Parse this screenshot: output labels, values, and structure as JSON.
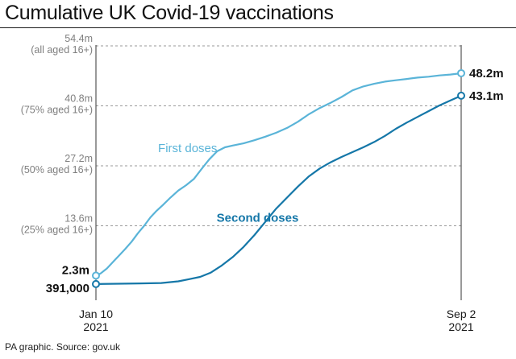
{
  "chart_data": {
    "type": "line",
    "title": "Cumulative UK Covid-19 vaccinations",
    "source": "PA graphic. Source: gov.uk",
    "x_dates": [
      "2021-01-10",
      "2021-09-02"
    ],
    "x_ticks": [
      {
        "date": "2021-01-10",
        "line1": "Jan 10",
        "line2": "2021"
      },
      {
        "date": "2021-09-02",
        "line1": "Sep 2",
        "line2": "2021"
      }
    ],
    "y_range": [
      0,
      54.4
    ],
    "y_ticks": [
      {
        "value": 13.6,
        "line1": "13.6m",
        "line2": "(25% aged 16+)"
      },
      {
        "value": 27.2,
        "line1": "27.2m",
        "line2": "(50% aged 16+)"
      },
      {
        "value": 40.8,
        "line1": "40.8m",
        "line2": "(75% aged 16+)"
      },
      {
        "value": 54.4,
        "line1": "54.4m",
        "line2": "(all aged 16+)"
      }
    ],
    "grid": "horizontal dashed",
    "series": [
      {
        "name": "First doses",
        "color": "#5ab4d8",
        "start_label": "2.3m",
        "end_label": "48.2m",
        "points": [
          [
            "2021-01-10",
            2.3
          ],
          [
            "2021-01-13",
            2.8
          ],
          [
            "2021-01-17",
            3.9
          ],
          [
            "2021-01-21",
            5.4
          ],
          [
            "2021-01-25",
            6.9
          ],
          [
            "2021-01-29",
            8.4
          ],
          [
            "2021-02-02",
            10.0
          ],
          [
            "2021-02-06",
            11.9
          ],
          [
            "2021-02-10",
            13.6
          ],
          [
            "2021-02-14",
            15.5
          ],
          [
            "2021-02-18",
            17.0
          ],
          [
            "2021-02-22",
            18.3
          ],
          [
            "2021-02-27",
            20.0
          ],
          [
            "2021-03-04",
            21.6
          ],
          [
            "2021-03-09",
            22.8
          ],
          [
            "2021-03-14",
            24.2
          ],
          [
            "2021-03-19",
            26.5
          ],
          [
            "2021-03-24",
            28.7
          ],
          [
            "2021-03-29",
            30.5
          ],
          [
            "2021-04-03",
            31.4
          ],
          [
            "2021-04-08",
            31.8
          ],
          [
            "2021-04-15",
            32.3
          ],
          [
            "2021-04-22",
            33.0
          ],
          [
            "2021-04-29",
            33.8
          ],
          [
            "2021-05-06",
            34.7
          ],
          [
            "2021-05-13",
            35.8
          ],
          [
            "2021-05-20",
            37.2
          ],
          [
            "2021-05-27",
            38.9
          ],
          [
            "2021-06-03",
            40.3
          ],
          [
            "2021-06-10",
            41.5
          ],
          [
            "2021-06-17",
            42.8
          ],
          [
            "2021-06-24",
            44.3
          ],
          [
            "2021-07-01",
            45.2
          ],
          [
            "2021-07-08",
            45.8
          ],
          [
            "2021-07-15",
            46.3
          ],
          [
            "2021-07-22",
            46.6
          ],
          [
            "2021-07-29",
            46.9
          ],
          [
            "2021-08-05",
            47.2
          ],
          [
            "2021-08-12",
            47.4
          ],
          [
            "2021-08-19",
            47.7
          ],
          [
            "2021-08-26",
            47.9
          ],
          [
            "2021-09-02",
            48.2
          ]
        ]
      },
      {
        "name": "Second doses",
        "color": "#1577a8",
        "start_label": "391,000",
        "end_label": "43.1m",
        "points": [
          [
            "2021-01-10",
            0.391
          ],
          [
            "2021-01-24",
            0.45
          ],
          [
            "2021-02-07",
            0.53
          ],
          [
            "2021-02-21",
            0.62
          ],
          [
            "2021-03-04",
            1.0
          ],
          [
            "2021-03-11",
            1.5
          ],
          [
            "2021-03-18",
            2.0
          ],
          [
            "2021-03-25",
            3.0
          ],
          [
            "2021-04-01",
            4.6
          ],
          [
            "2021-04-08",
            6.5
          ],
          [
            "2021-04-15",
            8.8
          ],
          [
            "2021-04-22",
            11.5
          ],
          [
            "2021-04-29",
            14.5
          ],
          [
            "2021-05-06",
            17.5
          ],
          [
            "2021-05-13",
            20.0
          ],
          [
            "2021-05-20",
            22.5
          ],
          [
            "2021-05-27",
            24.8
          ],
          [
            "2021-06-03",
            26.6
          ],
          [
            "2021-06-10",
            28.0
          ],
          [
            "2021-06-17",
            29.2
          ],
          [
            "2021-06-24",
            30.3
          ],
          [
            "2021-07-01",
            31.4
          ],
          [
            "2021-07-08",
            32.6
          ],
          [
            "2021-07-15",
            34.0
          ],
          [
            "2021-07-22",
            35.6
          ],
          [
            "2021-07-29",
            37.0
          ],
          [
            "2021-08-05",
            38.3
          ],
          [
            "2021-08-12",
            39.6
          ],
          [
            "2021-08-19",
            40.9
          ],
          [
            "2021-08-26",
            42.0
          ],
          [
            "2021-09-02",
            43.1
          ]
        ]
      }
    ]
  }
}
